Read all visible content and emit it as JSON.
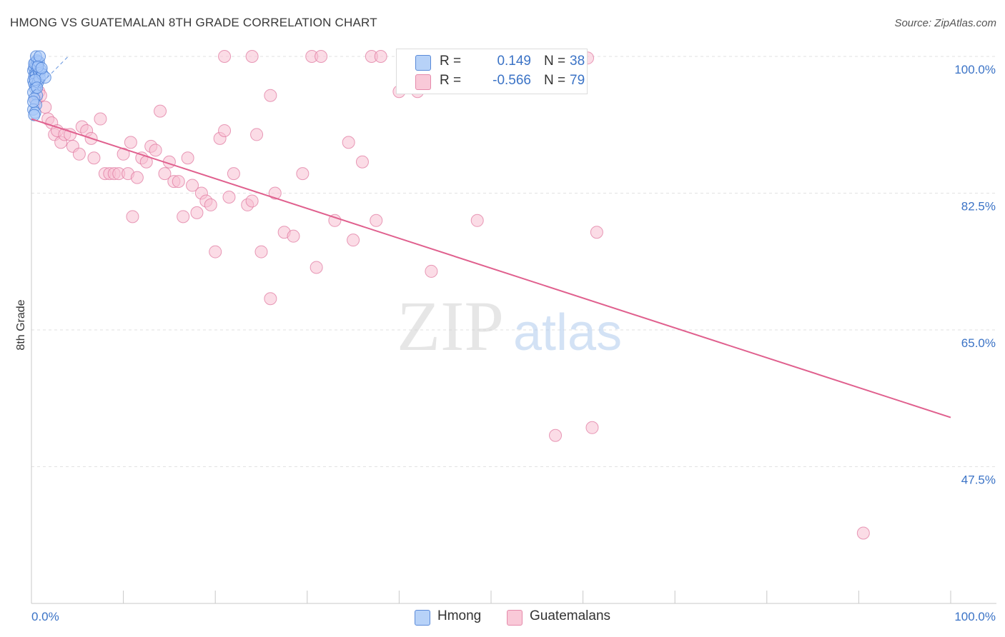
{
  "title": "HMONG VS GUATEMALAN 8TH GRADE CORRELATION CHART",
  "source": "Source: ZipAtlas.com",
  "watermark": {
    "zip": "ZIP",
    "atlas": "atlas"
  },
  "legend": {
    "rows": [
      {
        "r_label": "R =",
        "r_value": "0.149",
        "n_label": "N =",
        "n_value": "38"
      },
      {
        "r_label": "R =",
        "r_value": "-0.566",
        "n_label": "N =",
        "n_value": "79"
      }
    ]
  },
  "bottom_legend": [
    "Hmong",
    "Guatemalans"
  ],
  "colors": {
    "hmong_fill": "#a8c8f8",
    "hmong_stroke": "#4a7fd6",
    "guat_fill": "#f8c0d2",
    "guat_stroke": "#e07aa0",
    "guat_line": "#e0608e",
    "axis_text": "#3b73c6",
    "grid": "#e2e2e2"
  },
  "chart_data": {
    "type": "scatter",
    "title": "HMONG VS GUATEMALAN 8TH GRADE CORRELATION CHART",
    "xlabel": "",
    "ylabel": "8th Grade",
    "xlim": [
      0,
      100
    ],
    "ylim": [
      30,
      100
    ],
    "x_tick_labels": [
      "0.0%",
      "100.0%"
    ],
    "y_ticks": [
      {
        "value": 100,
        "label": "100.0%"
      },
      {
        "value": 82.5,
        "label": "82.5%"
      },
      {
        "value": 65,
        "label": "65.0%"
      },
      {
        "value": 47.5,
        "label": "47.5%"
      }
    ],
    "series": [
      {
        "name": "Hmong",
        "r": 0.149,
        "n": 38,
        "trend": {
          "x0": 0.2,
          "y0": 95.5,
          "x1": 4.0,
          "y1": 100.0,
          "style": "dashed"
        },
        "points": [
          [
            0.2,
            98.2
          ],
          [
            0.3,
            98.6
          ],
          [
            0.4,
            97.8
          ],
          [
            0.5,
            98.9
          ],
          [
            0.6,
            98.4
          ],
          [
            0.7,
            99.0
          ],
          [
            0.3,
            97.4
          ],
          [
            0.5,
            97.6
          ],
          [
            0.4,
            99.2
          ],
          [
            0.6,
            99.4
          ],
          [
            0.8,
            98.1
          ],
          [
            0.2,
            96.9
          ],
          [
            0.3,
            96.5
          ],
          [
            0.5,
            96.2
          ],
          [
            0.9,
            97.9
          ],
          [
            1.0,
            98.3
          ],
          [
            0.4,
            95.9
          ],
          [
            0.2,
            95.4
          ],
          [
            0.6,
            95.0
          ],
          [
            0.3,
            94.6
          ],
          [
            0.5,
            93.8
          ],
          [
            0.2,
            93.2
          ],
          [
            0.4,
            92.8
          ],
          [
            0.7,
            96.7
          ],
          [
            0.9,
            97.2
          ],
          [
            1.2,
            97.7
          ],
          [
            1.5,
            97.3
          ],
          [
            0.6,
            99.5
          ],
          [
            0.3,
            99.1
          ],
          [
            0.8,
            99.3
          ],
          [
            0.5,
            100.0
          ],
          [
            0.9,
            100.0
          ],
          [
            0.2,
            94.2
          ],
          [
            0.4,
            97.0
          ],
          [
            0.7,
            98.7
          ],
          [
            1.1,
            98.5
          ],
          [
            0.6,
            96.0
          ],
          [
            0.3,
            92.5
          ]
        ]
      },
      {
        "name": "Guatemalans",
        "r": -0.566,
        "n": 79,
        "trend": {
          "x0": 0.0,
          "y0": 92.0,
          "x1": 100.0,
          "y1": 53.8,
          "style": "solid"
        },
        "points": [
          [
            0.5,
            94.5
          ],
          [
            0.8,
            95.5
          ],
          [
            1.0,
            95.0
          ],
          [
            1.5,
            93.5
          ],
          [
            1.8,
            92.0
          ],
          [
            2.2,
            91.5
          ],
          [
            2.5,
            90.0
          ],
          [
            2.8,
            90.5
          ],
          [
            3.2,
            89.0
          ],
          [
            3.6,
            90.0
          ],
          [
            4.2,
            90.0
          ],
          [
            4.5,
            88.5
          ],
          [
            5.2,
            87.5
          ],
          [
            5.5,
            91.0
          ],
          [
            6.0,
            90.5
          ],
          [
            6.5,
            89.5
          ],
          [
            6.8,
            87.0
          ],
          [
            7.5,
            92.0
          ],
          [
            8.0,
            85.0
          ],
          [
            8.5,
            85.0
          ],
          [
            9.0,
            85.0
          ],
          [
            9.5,
            85.0
          ],
          [
            10.0,
            87.5
          ],
          [
            10.5,
            85.0
          ],
          [
            10.8,
            89.0
          ],
          [
            11.0,
            79.5
          ],
          [
            11.5,
            84.5
          ],
          [
            12.0,
            87.0
          ],
          [
            12.5,
            86.5
          ],
          [
            13.0,
            88.5
          ],
          [
            13.5,
            88.0
          ],
          [
            14.0,
            93.0
          ],
          [
            14.5,
            85.0
          ],
          [
            15.0,
            86.5
          ],
          [
            15.5,
            84.0
          ],
          [
            16.0,
            84.0
          ],
          [
            16.5,
            79.5
          ],
          [
            17.0,
            87.0
          ],
          [
            17.5,
            83.5
          ],
          [
            18.0,
            80.0
          ],
          [
            18.5,
            82.5
          ],
          [
            19.0,
            81.5
          ],
          [
            19.5,
            81.0
          ],
          [
            20.0,
            75.0
          ],
          [
            20.5,
            89.5
          ],
          [
            21.0,
            90.5
          ],
          [
            21.5,
            82.0
          ],
          [
            22.0,
            85.0
          ],
          [
            21.0,
            100.0
          ],
          [
            23.5,
            81.0
          ],
          [
            24.0,
            81.5
          ],
          [
            24.5,
            90.0
          ],
          [
            25.0,
            75.0
          ],
          [
            26.0,
            95.0
          ],
          [
            26.0,
            69.0
          ],
          [
            24.0,
            100.0
          ],
          [
            26.5,
            82.5
          ],
          [
            27.5,
            77.5
          ],
          [
            28.5,
            77.0
          ],
          [
            29.5,
            85.0
          ],
          [
            30.5,
            100.0
          ],
          [
            31.0,
            73.0
          ],
          [
            31.5,
            100.0
          ],
          [
            33.0,
            79.0
          ],
          [
            34.5,
            89.0
          ],
          [
            35.0,
            76.5
          ],
          [
            36.0,
            86.5
          ],
          [
            37.5,
            79.0
          ],
          [
            37.0,
            100.0
          ],
          [
            38.0,
            100.0
          ],
          [
            40.0,
            95.5
          ],
          [
            42.0,
            95.5
          ],
          [
            43.5,
            72.5
          ],
          [
            48.5,
            79.0
          ],
          [
            57.0,
            51.5
          ],
          [
            60.5,
            99.8
          ],
          [
            61.5,
            77.5
          ],
          [
            61.0,
            52.5
          ],
          [
            90.5,
            39.0
          ]
        ]
      }
    ]
  }
}
